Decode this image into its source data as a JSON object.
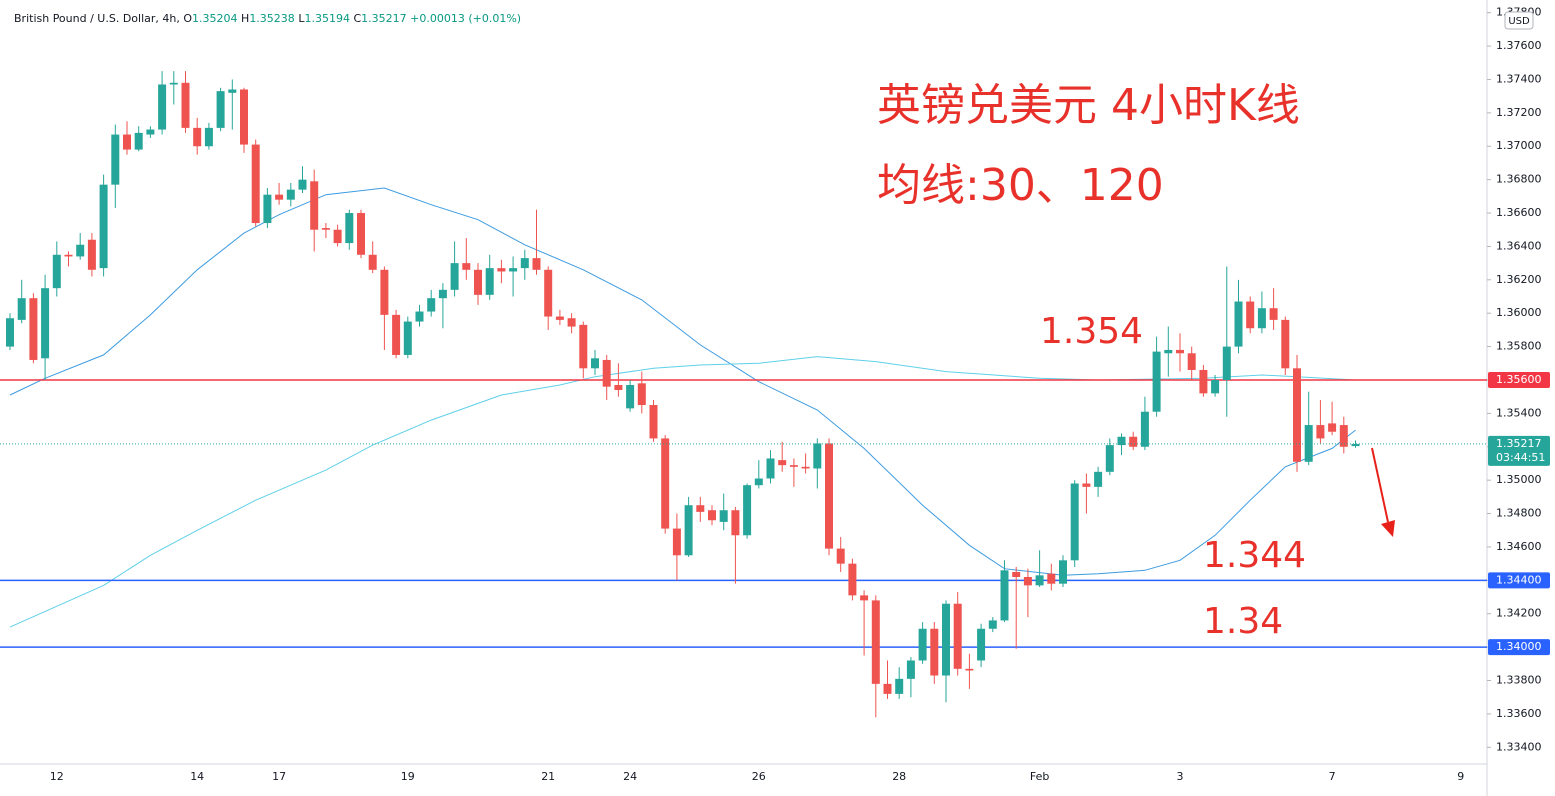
{
  "chart_data": {
    "type": "candlestick",
    "symbol": "British Pound / U.S. Dollar, 4h,",
    "ohlc_header": [
      {
        "label": "O",
        "value": 1.35204
      },
      {
        "label": "H",
        "value": 1.35238
      },
      {
        "label": "L",
        "value": 1.35194
      },
      {
        "label": "C",
        "value": 1.35217
      }
    ],
    "change": "+0.00013 (+0.01%)",
    "currency": "USD",
    "annotations": [
      "英镑兑美元 4小时K线",
      "均线:30、120",
      "1.354",
      "1.344",
      "1.34"
    ],
    "up_color": "#26a69a",
    "down_color": "#ef5350",
    "categories": [
      null,
      null,
      null,
      null,
      "12",
      null,
      null,
      null,
      null,
      null,
      null,
      null,
      null,
      null,
      null,
      null,
      "14",
      null,
      null,
      null,
      null,
      null,
      null,
      "17",
      null,
      null,
      null,
      null,
      null,
      null,
      null,
      null,
      null,
      null,
      "19",
      null,
      null,
      null,
      null,
      null,
      null,
      null,
      null,
      null,
      null,
      null,
      "21",
      null,
      null,
      null,
      null,
      null,
      null,
      "24",
      null,
      null,
      null,
      null,
      null,
      null,
      null,
      null,
      null,
      null,
      "26",
      null,
      null,
      null,
      null,
      null,
      null,
      null,
      null,
      null,
      null,
      null,
      "28",
      null,
      null,
      null,
      null,
      null,
      null,
      null,
      null,
      null,
      null,
      null,
      "Feb",
      null,
      null,
      null,
      null,
      null,
      null,
      null,
      null,
      null,
      null,
      null,
      "3",
      null,
      null,
      null,
      null,
      null,
      null,
      null,
      null,
      null,
      null,
      null,
      null,
      "7",
      null,
      null,
      null,
      null,
      null,
      null,
      null,
      null,
      null,
      null,
      "9"
    ],
    "ohlc": [
      [
        1.358,
        1.36,
        1.3578,
        1.3597
      ],
      [
        1.3596,
        1.362,
        1.3594,
        1.3609
      ],
      [
        1.3609,
        1.3612,
        1.357,
        1.3572
      ],
      [
        1.3573,
        1.3623,
        1.356,
        1.3615
      ],
      [
        1.3615,
        1.3643,
        1.361,
        1.3635
      ],
      [
        1.3635,
        1.3637,
        1.3628,
        1.3634
      ],
      [
        1.3634,
        1.3648,
        1.3632,
        1.3641
      ],
      [
        1.3644,
        1.3648,
        1.3622,
        1.3626
      ],
      [
        1.3627,
        1.3683,
        1.3622,
        1.3677
      ],
      [
        1.3677,
        1.3713,
        1.3663,
        1.3707
      ],
      [
        1.3707,
        1.3715,
        1.3695,
        1.3698
      ],
      [
        1.3698,
        1.3712,
        1.3697,
        1.3708
      ],
      [
        1.3707,
        1.3712,
        1.3705,
        1.371
      ],
      [
        1.371,
        1.3745,
        1.3707,
        1.3737
      ],
      [
        1.3737,
        1.3745,
        1.3725,
        1.3738
      ],
      [
        1.3738,
        1.3745,
        1.3708,
        1.3711
      ],
      [
        1.3711,
        1.3717,
        1.3695,
        1.37
      ],
      [
        1.37,
        1.3714,
        1.3698,
        1.3711
      ],
      [
        1.3711,
        1.3735,
        1.3709,
        1.3733
      ],
      [
        1.3732,
        1.374,
        1.371,
        1.3734
      ],
      [
        1.3734,
        1.3735,
        1.3696,
        1.3701
      ],
      [
        1.3701,
        1.3704,
        1.3652,
        1.3654
      ],
      [
        1.3654,
        1.3675,
        1.3651,
        1.3671
      ],
      [
        1.3671,
        1.3678,
        1.3665,
        1.3668
      ],
      [
        1.3668,
        1.3678,
        1.3664,
        1.3674
      ],
      [
        1.3674,
        1.3688,
        1.3672,
        1.368
      ],
      [
        1.3679,
        1.3686,
        1.3637,
        1.365
      ],
      [
        1.3651,
        1.3654,
        1.3645,
        1.365
      ],
      [
        1.365,
        1.3653,
        1.364,
        1.3642
      ],
      [
        1.3642,
        1.3662,
        1.3638,
        1.366
      ],
      [
        1.366,
        1.3662,
        1.3633,
        1.3635
      ],
      [
        1.3635,
        1.3643,
        1.3624,
        1.3626
      ],
      [
        1.3626,
        1.3628,
        1.3578,
        1.3599
      ],
      [
        1.3599,
        1.3602,
        1.3573,
        1.3575
      ],
      [
        1.3575,
        1.3598,
        1.3573,
        1.3595
      ],
      [
        1.3595,
        1.3605,
        1.3592,
        1.3601
      ],
      [
        1.3601,
        1.3614,
        1.3598,
        1.3609
      ],
      [
        1.3609,
        1.3618,
        1.3591,
        1.3614
      ],
      [
        1.3614,
        1.3643,
        1.361,
        1.363
      ],
      [
        1.363,
        1.3645,
        1.362,
        1.3626
      ],
      [
        1.3626,
        1.363,
        1.3605,
        1.3611
      ],
      [
        1.3611,
        1.3635,
        1.3608,
        1.3627
      ],
      [
        1.3627,
        1.3632,
        1.3618,
        1.3625
      ],
      [
        1.3625,
        1.3634,
        1.361,
        1.3627
      ],
      [
        1.3627,
        1.3638,
        1.362,
        1.3633
      ],
      [
        1.3633,
        1.3662,
        1.3623,
        1.3626
      ],
      [
        1.3626,
        1.3628,
        1.359,
        1.3598
      ],
      [
        1.3598,
        1.3602,
        1.3593,
        1.3596
      ],
      [
        1.3597,
        1.36,
        1.3588,
        1.3592
      ],
      [
        1.3593,
        1.3595,
        1.3561,
        1.3567
      ],
      [
        1.3567,
        1.3578,
        1.3563,
        1.3573
      ],
      [
        1.3572,
        1.3575,
        1.3548,
        1.3556
      ],
      [
        1.3557,
        1.357,
        1.355,
        1.3554
      ],
      [
        1.3543,
        1.356,
        1.3541,
        1.3557
      ],
      [
        1.3558,
        1.3565,
        1.354,
        1.3545
      ],
      [
        1.3545,
        1.3548,
        1.3523,
        1.3525
      ],
      [
        1.3525,
        1.3527,
        1.3468,
        1.3471
      ],
      [
        1.3471,
        1.348,
        1.344,
        1.3455
      ],
      [
        1.3455,
        1.349,
        1.3454,
        1.3485
      ],
      [
        1.3485,
        1.349,
        1.3475,
        1.3481
      ],
      [
        1.3482,
        1.3485,
        1.3473,
        1.3476
      ],
      [
        1.3475,
        1.3492,
        1.347,
        1.3482
      ],
      [
        1.3482,
        1.3484,
        1.3438,
        1.3467
      ],
      [
        1.3467,
        1.3498,
        1.3465,
        1.3497
      ],
      [
        1.3497,
        1.3512,
        1.3495,
        1.3501
      ],
      [
        1.3501,
        1.3518,
        1.3498,
        1.3513
      ],
      [
        1.3512,
        1.3523,
        1.3505,
        1.3509
      ],
      [
        1.3509,
        1.3513,
        1.3496,
        1.3508
      ],
      [
        1.3508,
        1.3516,
        1.3504,
        1.3507
      ],
      [
        1.3507,
        1.3525,
        1.3495,
        1.3522
      ],
      [
        1.3522,
        1.3525,
        1.3455,
        1.3459
      ],
      [
        1.3459,
        1.3466,
        1.3445,
        1.345
      ],
      [
        1.345,
        1.3453,
        1.3428,
        1.3431
      ],
      [
        1.3431,
        1.3434,
        1.3395,
        1.3428
      ],
      [
        1.3428,
        1.3431,
        1.3358,
        1.3378
      ],
      [
        1.3378,
        1.3392,
        1.3369,
        1.3372
      ],
      [
        1.3372,
        1.3388,
        1.3369,
        1.3381
      ],
      [
        1.3381,
        1.3394,
        1.337,
        1.3392
      ],
      [
        1.3392,
        1.3415,
        1.339,
        1.3411
      ],
      [
        1.3411,
        1.3415,
        1.3378,
        1.3383
      ],
      [
        1.3383,
        1.3428,
        1.3367,
        1.3426
      ],
      [
        1.3426,
        1.3433,
        1.3383,
        1.3387
      ],
      [
        1.3387,
        1.3396,
        1.3375,
        1.3386
      ],
      [
        1.3392,
        1.3414,
        1.3388,
        1.3411
      ],
      [
        1.3411,
        1.3418,
        1.3409,
        1.3416
      ],
      [
        1.3416,
        1.3452,
        1.3415,
        1.3446
      ],
      [
        1.3445,
        1.3448,
        1.3399,
        1.3442
      ],
      [
        1.3442,
        1.3447,
        1.3418,
        1.3437
      ],
      [
        1.3437,
        1.3458,
        1.3436,
        1.3443
      ],
      [
        1.3444,
        1.345,
        1.3434,
        1.3438
      ],
      [
        1.3438,
        1.3455,
        1.3436,
        1.3452
      ],
      [
        1.3452,
        1.35,
        1.3448,
        1.3498
      ],
      [
        1.3498,
        1.3504,
        1.348,
        1.3496
      ],
      [
        1.3496,
        1.3508,
        1.349,
        1.3505
      ],
      [
        1.3505,
        1.3525,
        1.3503,
        1.3521
      ],
      [
        1.3521,
        1.3528,
        1.3515,
        1.3526
      ],
      [
        1.3526,
        1.3529,
        1.3518,
        1.352
      ],
      [
        1.352,
        1.355,
        1.3518,
        1.3541
      ],
      [
        1.3541,
        1.3586,
        1.3538,
        1.3577
      ],
      [
        1.3576,
        1.3592,
        1.3562,
        1.3578
      ],
      [
        1.3578,
        1.3588,
        1.3565,
        1.3576
      ],
      [
        1.3576,
        1.358,
        1.356,
        1.3566
      ],
      [
        1.3566,
        1.3569,
        1.355,
        1.3552
      ],
      [
        1.3552,
        1.3563,
        1.355,
        1.356
      ],
      [
        1.356,
        1.3628,
        1.3538,
        1.358
      ],
      [
        1.358,
        1.362,
        1.3576,
        1.3607
      ],
      [
        1.3607,
        1.361,
        1.3588,
        1.3591
      ],
      [
        1.3591,
        1.3613,
        1.3588,
        1.3603
      ],
      [
        1.3603,
        1.3615,
        1.359,
        1.3596
      ],
      [
        1.3596,
        1.3598,
        1.3563,
        1.3567
      ],
      [
        1.3567,
        1.3575,
        1.3505,
        1.3511
      ],
      [
        1.3511,
        1.3553,
        1.3509,
        1.3533
      ],
      [
        1.3533,
        1.3548,
        1.3522,
        1.3525
      ],
      [
        1.3534,
        1.3547,
        1.3527,
        1.3529
      ],
      [
        1.3533,
        1.3538,
        1.3516,
        1.352
      ],
      [
        1.35204,
        1.35238,
        1.35194,
        1.35217
      ],
      null,
      null,
      null,
      null,
      null,
      null,
      null,
      null,
      null
    ],
    "ma": [
      {
        "color": "#3d9be0",
        "x": [
          0,
          3,
          8,
          12,
          16,
          20,
          23,
          27,
          32,
          36,
          40,
          44,
          49,
          54,
          59,
          64,
          69,
          73,
          78,
          82,
          85,
          90,
          93,
          97,
          100,
          103,
          106,
          109,
          113,
          115
        ],
        "values": [
          1.3551,
          1.3561,
          1.3575,
          1.3599,
          1.3626,
          1.3648,
          1.3659,
          1.3671,
          1.3675,
          1.3665,
          1.3656,
          1.3641,
          1.3626,
          1.3608,
          1.3581,
          1.3559,
          1.3542,
          1.3519,
          1.3485,
          1.3461,
          1.3447,
          1.3443,
          1.3444,
          1.3446,
          1.3452,
          1.3467,
          1.3488,
          1.3508,
          1.3519,
          1.353
        ]
      },
      {
        "color": "#5fd0e8",
        "x": [
          0,
          8,
          12,
          16,
          21,
          27,
          31,
          36,
          42,
          47,
          50,
          55,
          59,
          64,
          69,
          74,
          80,
          88,
          93,
          102,
          107,
          110,
          115
        ],
        "values": [
          1.3412,
          1.3437,
          1.3455,
          1.347,
          1.3488,
          1.3506,
          1.3521,
          1.3536,
          1.3551,
          1.3557,
          1.3562,
          1.3567,
          1.3569,
          1.357,
          1.3574,
          1.3571,
          1.3565,
          1.3561,
          1.356,
          1.3561,
          1.3563,
          1.3562,
          1.356
        ]
      }
    ],
    "levels": [
      {
        "value": 1.356,
        "label": "1.35600",
        "color": "#f23645"
      },
      {
        "value": 1.344,
        "label": "1.34400",
        "color": "#2962ff"
      },
      {
        "value": 1.34,
        "label": "1.34000",
        "color": "#2962ff"
      }
    ],
    "last_price": 1.35217,
    "countdown": "03:44:51",
    "ylim": [
      1.333,
      1.3784
    ],
    "yticks": [
      {
        "value": 1.334,
        "label": "1.33400"
      },
      {
        "value": 1.336,
        "label": "1.33600"
      },
      {
        "value": 1.338,
        "label": "1.33800"
      },
      {
        "value": 1.34,
        "label": "1.34000"
      },
      {
        "value": 1.342,
        "label": "1.34200"
      },
      {
        "value": 1.344,
        "label": "1.34400"
      },
      {
        "value": 1.346,
        "label": "1.34600"
      },
      {
        "value": 1.348,
        "label": "1.34800"
      },
      {
        "value": 1.35,
        "label": "1.35000"
      },
      {
        "value": 1.352,
        "label": "1.35200"
      },
      {
        "value": 1.354,
        "label": "1.35400"
      },
      {
        "value": 1.356,
        "label": "1.35600"
      },
      {
        "value": 1.358,
        "label": "1.35800"
      },
      {
        "value": 1.36,
        "label": "1.36000"
      },
      {
        "value": 1.362,
        "label": "1.36200"
      },
      {
        "value": 1.364,
        "label": "1.36400"
      },
      {
        "value": 1.366,
        "label": "1.36600"
      },
      {
        "value": 1.368,
        "label": "1.36800"
      },
      {
        "value": 1.37,
        "label": "1.37000"
      },
      {
        "value": 1.372,
        "label": "1.37200"
      },
      {
        "value": 1.374,
        "label": "1.37400"
      },
      {
        "value": 1.376,
        "label": "1.37600"
      },
      {
        "value": 1.378,
        "label": "1.37800"
      }
    ],
    "grid": false
  }
}
